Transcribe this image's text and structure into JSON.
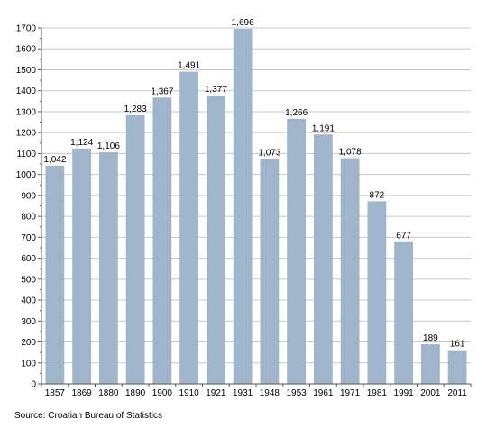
{
  "chart_data": {
    "type": "bar",
    "categories": [
      "1857",
      "1869",
      "1880",
      "1890",
      "1900",
      "1910",
      "1921",
      "1931",
      "1948",
      "1953",
      "1961",
      "1971",
      "1981",
      "1991",
      "2001",
      "2011"
    ],
    "values": [
      1042,
      1124,
      1106,
      1283,
      1367,
      1491,
      1377,
      1696,
      1073,
      1266,
      1191,
      1078,
      872,
      677,
      189,
      161
    ],
    "value_labels": [
      "1,042",
      "1,124",
      "1,106",
      "1,283",
      "1,367",
      "1,491",
      "1,377",
      "1,696",
      "1,073",
      "1,266",
      "1,191",
      "1,078",
      "872",
      "677",
      "189",
      "161"
    ],
    "ylim": [
      0,
      1700
    ],
    "yticks": [
      0,
      100,
      200,
      300,
      400,
      500,
      600,
      700,
      800,
      900,
      1000,
      1100,
      1200,
      1300,
      1400,
      1500,
      1600,
      1700
    ],
    "grid": true,
    "bar_color": "#9fb5cc",
    "grid_color": "#c8c8c8"
  },
  "source": "Source: Croatian Bureau of Statistics"
}
